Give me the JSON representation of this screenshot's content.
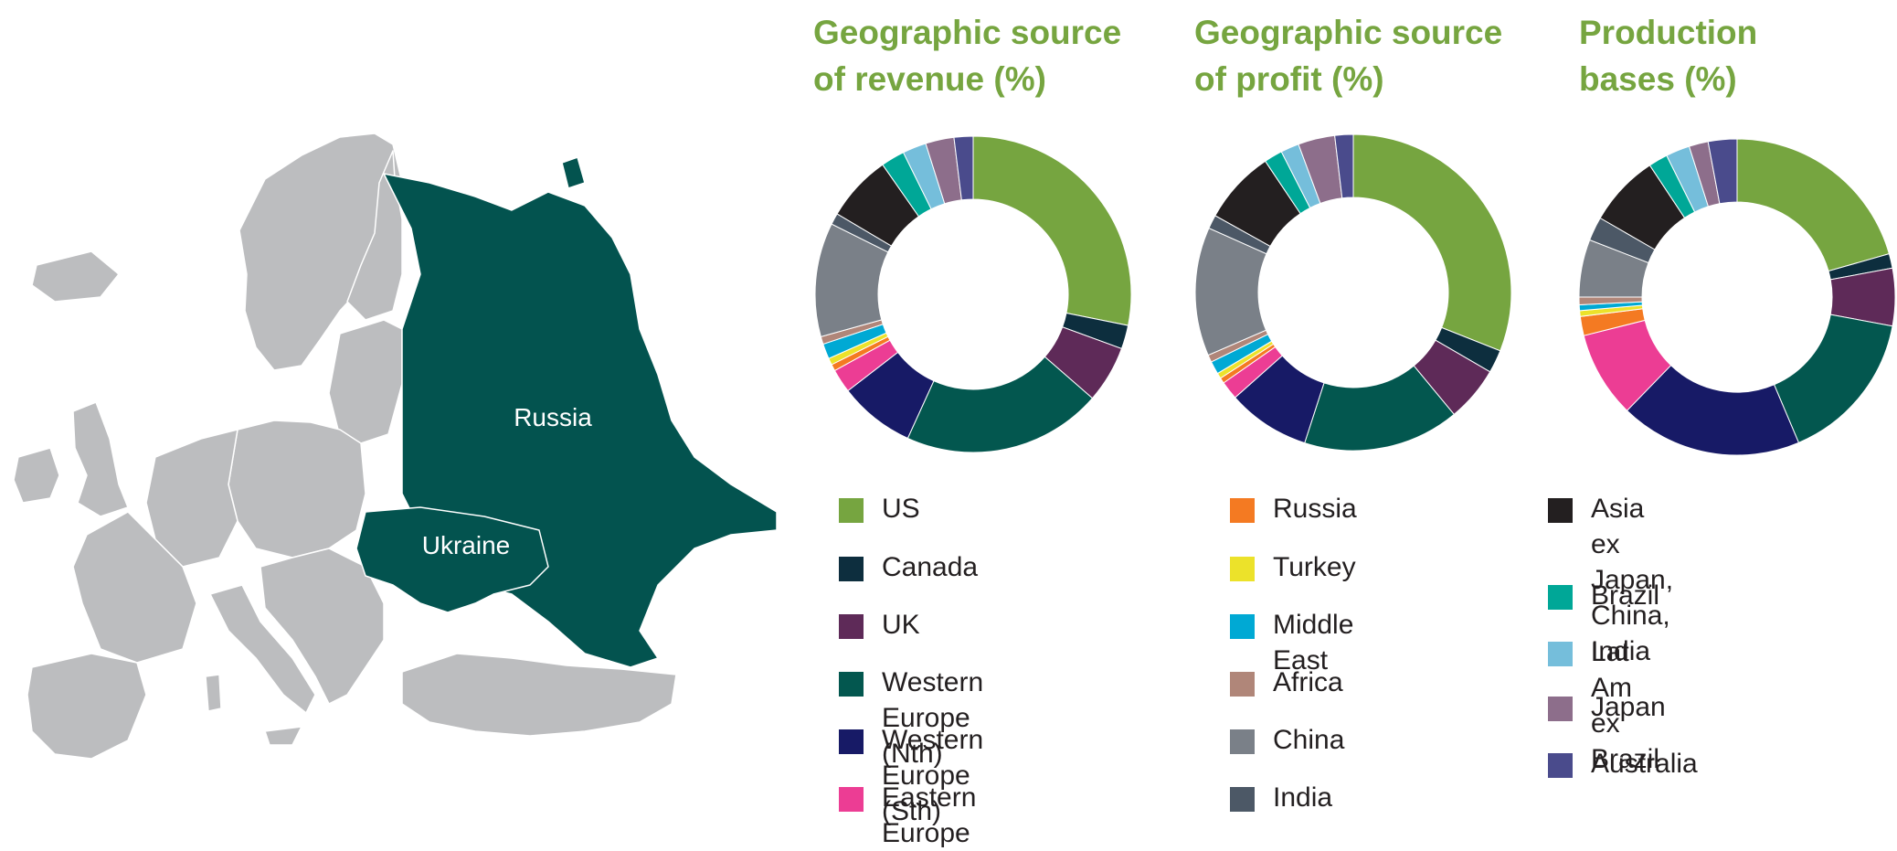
{
  "map": {
    "labels": {
      "russia": "Russia",
      "ukraine": "Ukraine"
    },
    "colors": {
      "highlight": "#03534f",
      "land": "#bcbdbf",
      "border": "#ffffff"
    }
  },
  "colors": {
    "title": "#76a540",
    "segments": {
      "US": "#76a540",
      "Canada": "#0d2e3e",
      "UK": "#5e2a58",
      "Western Europe (Nth)": "#03574f",
      "Western Europe (Sth)": "#171a66",
      "Eastern Europe": "#ec3d94",
      "Russia": "#f47a22",
      "Turkey": "#ece22a",
      "Middle East": "#00a9d4",
      "Africa": "#b08679",
      "China": "#7a8088",
      "India": "#4c5866",
      "Asia ex Japan, China, India": "#231f20",
      "Brazil": "#00a797",
      "Lat Am ex Brazil": "#75bedb",
      "Japan": "#8d6e8b",
      "Australia": "#4a4b8c"
    }
  },
  "chart_data": [
    {
      "type": "pie",
      "title": "Geographic source\nof revenue (%)",
      "labels": [
        "US",
        "Canada",
        "UK",
        "Western Europe (Nth)",
        "Western Europe (Sth)",
        "Eastern Europe",
        "Russia",
        "Turkey",
        "Middle East",
        "Africa",
        "China",
        "India",
        "Asia ex Japan, China, India",
        "Brazil",
        "Lat Am ex Brazil",
        "Japan",
        "Australia"
      ],
      "values": [
        29,
        2.5,
        6,
        21,
        8,
        2.5,
        0.7,
        0.7,
        1.6,
        0.8,
        12,
        1.2,
        7,
        2.5,
        2.5,
        3,
        2
      ]
    },
    {
      "type": "pie",
      "title": "Geographic source\nof profit (%)",
      "labels": [
        "US",
        "Canada",
        "UK",
        "Western Europe (Nth)",
        "Western Europe (Sth)",
        "Eastern Europe",
        "Russia",
        "Turkey",
        "Middle East",
        "Africa",
        "China",
        "India",
        "Asia ex Japan, China, India",
        "Brazil",
        "Lat Am ex Brazil",
        "Japan",
        "Australia"
      ],
      "values": [
        33,
        2.5,
        6,
        17,
        9,
        2,
        0.6,
        0.6,
        1.4,
        0.8,
        14,
        1.5,
        8,
        2,
        2,
        4,
        2
      ]
    },
    {
      "type": "pie",
      "title": "Production\nbases (%)",
      "labels": [
        "US",
        "Canada",
        "UK",
        "Western Europe (Nth)",
        "Western Europe (Sth)",
        "Eastern Europe",
        "Russia",
        "Turkey",
        "Middle East",
        "Africa",
        "China",
        "India",
        "Asia ex Japan, China, India",
        "Brazil",
        "Lat Am ex Brazil",
        "Japan",
        "Australia"
      ],
      "values": [
        21,
        1.5,
        6,
        16,
        19,
        9,
        2,
        0.6,
        0.6,
        0.8,
        6,
        2.5,
        7.5,
        2,
        2.5,
        2,
        3
      ]
    }
  ],
  "legend": [
    {
      "label": "US"
    },
    {
      "label": "Canada"
    },
    {
      "label": "UK"
    },
    {
      "label": "Western Europe (Nth)"
    },
    {
      "label": "Western Europe (Sth)"
    },
    {
      "label": "Eastern Europe"
    },
    {
      "label": "Russia"
    },
    {
      "label": "Turkey"
    },
    {
      "label": "Middle East"
    },
    {
      "label": "Africa"
    },
    {
      "label": "China"
    },
    {
      "label": "India"
    },
    {
      "label": "Asia ex Japan,\nChina, India"
    },
    {
      "label": "Brazil"
    },
    {
      "label": "Lat Am ex Brazil"
    },
    {
      "label": "Japan"
    },
    {
      "label": "Australia"
    }
  ]
}
